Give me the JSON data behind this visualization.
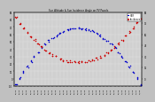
{
  "title": "Sun Altitude & Sun Incidence Angle on PV Panels",
  "legend_blue_label": "HOY",
  "legend_red_label": "Incidence",
  "bg_color": "#c0c0c0",
  "plot_bg_color": "#d0d0d0",
  "grid_color": "#ffffff",
  "ylim": [
    -10,
    90
  ],
  "yticks_left": [
    -10,
    0,
    10,
    20,
    30,
    40,
    50,
    60,
    70,
    80,
    90
  ],
  "yticks_right": [
    90,
    75,
    60,
    45,
    30,
    15,
    0
  ],
  "altitude_color": "#0000cc",
  "incidence_color": "#cc0000",
  "dot_size": 1.2,
  "n_days": 35,
  "peak_altitude_day": 17,
  "peak_altitude_val": 68,
  "min_altitude_val": -8,
  "peak_incidence_day": 17,
  "min_incidence_val": 22,
  "max_incidence_val": 82,
  "day_labels": [
    "05/03",
    "05/05",
    "05/07",
    "05/09",
    "05/11",
    "05/13",
    "05/15",
    "05/17",
    "05/19",
    "05/21",
    "05/23",
    "05/25",
    "05/27",
    "05/29",
    "05/31",
    "06/02",
    "06/04",
    "06/06",
    "06/08",
    "06/10",
    "06/12",
    "06/14",
    "06/16",
    "06/18",
    "06/20",
    "06/22",
    "06/24",
    "06/26",
    "06/28",
    "07/03",
    "07/05",
    "07/07",
    "07/09",
    "07/11",
    "07/13"
  ]
}
